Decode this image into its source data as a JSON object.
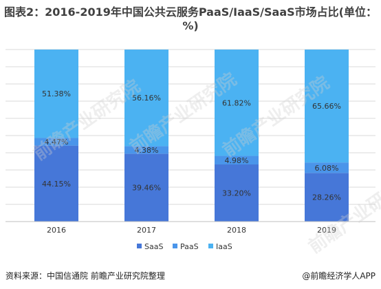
{
  "title": "图表2：2016-2019年中国公共云服务PaaS/IaaS/SaaS市场占比(单位：%)",
  "source": "资料来源：中国信通院 前瞻产业研究院整理",
  "app_label": "@前瞻经济学人APP",
  "watermark": "前瞻产业研究院",
  "chart_data": {
    "type": "bar",
    "stacked": true,
    "categories": [
      "2016",
      "2017",
      "2018",
      "2019"
    ],
    "series": [
      {
        "name": "SaaS",
        "values": [
          44.15,
          39.46,
          33.2,
          28.26
        ],
        "color": "#4677d8"
      },
      {
        "name": "PaaS",
        "values": [
          4.47,
          4.38,
          4.98,
          6.08
        ],
        "color": "#4a95ea"
      },
      {
        "name": "IaaS",
        "values": [
          51.38,
          56.16,
          61.82,
          65.66
        ],
        "color": "#4bb2f2"
      }
    ],
    "data_labels": [
      [
        "44.15%",
        "39.46%",
        "33.20%",
        "28.26%"
      ],
      [
        "4.47%",
        "4.38%",
        "4.98%",
        "6.08%"
      ],
      [
        "51.38%",
        "56.16%",
        "61.82%",
        "65.66%"
      ]
    ],
    "ylim": [
      0,
      100
    ],
    "grid": true,
    "legend": "bottom-center",
    "xlabel": "",
    "ylabel": ""
  }
}
